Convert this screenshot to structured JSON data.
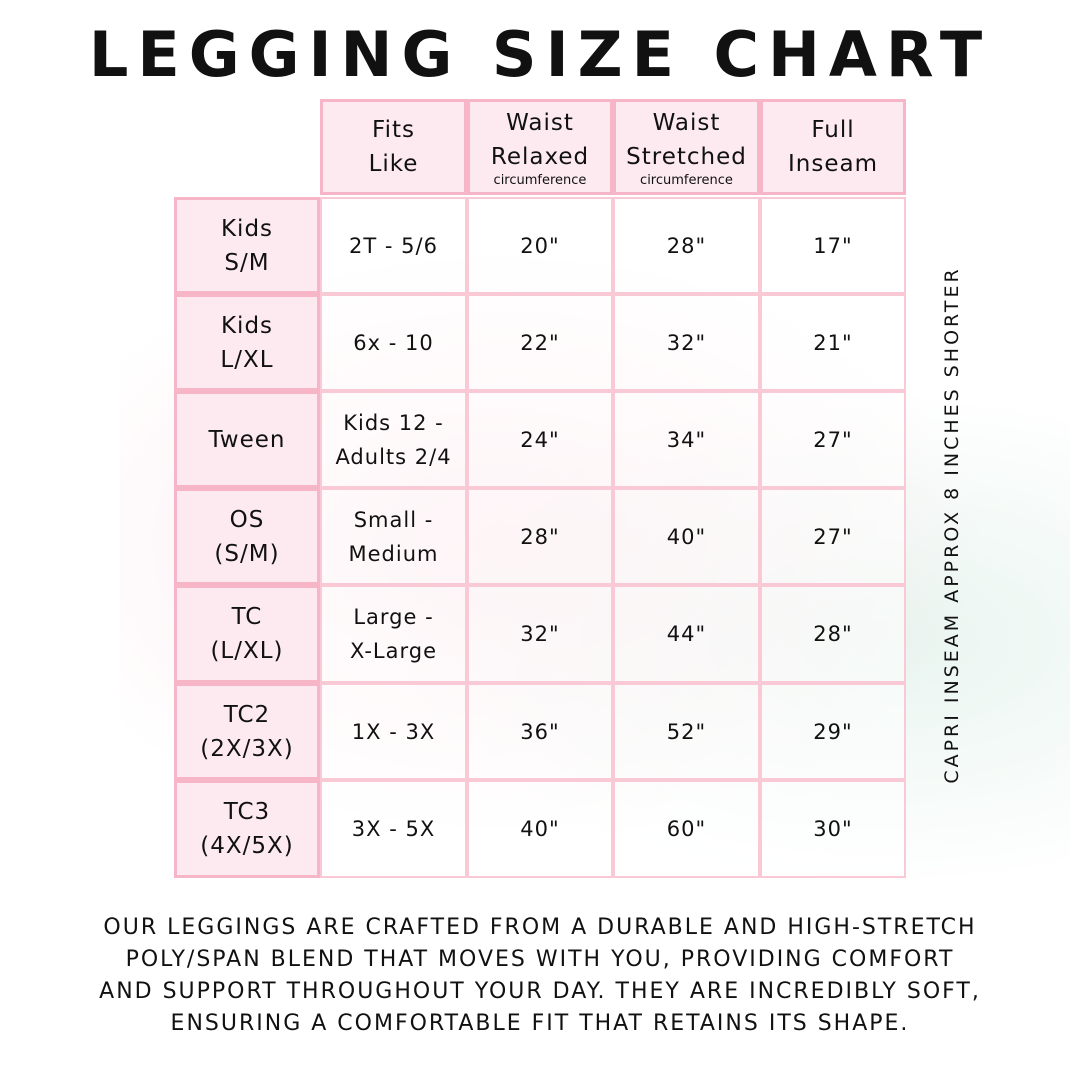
{
  "title": "LEGGING SIZE CHART",
  "columns": [
    {
      "line1": "Fits",
      "line2": "Like",
      "sub": ""
    },
    {
      "line1": "Waist",
      "line2": "Relaxed",
      "sub": "circumference"
    },
    {
      "line1": "Waist",
      "line2": "Stretched",
      "sub": "circumference"
    },
    {
      "line1": "Full",
      "line2": "Inseam",
      "sub": ""
    }
  ],
  "rows": [
    {
      "size1": "Kids",
      "size2": "S/M",
      "fits1": "2T - 5/6",
      "fits2": "",
      "relaxed": "20\"",
      "stretched": "28\"",
      "inseam": "17\""
    },
    {
      "size1": "Kids",
      "size2": "L/XL",
      "fits1": "6x - 10",
      "fits2": "",
      "relaxed": "22\"",
      "stretched": "32\"",
      "inseam": "21\""
    },
    {
      "size1": "Tween",
      "size2": "",
      "fits1": "Kids 12 -",
      "fits2": "Adults 2/4",
      "relaxed": "24\"",
      "stretched": "34\"",
      "inseam": "27\""
    },
    {
      "size1": "OS",
      "size2": "(S/M)",
      "fits1": "Small -",
      "fits2": "Medium",
      "relaxed": "28\"",
      "stretched": "40\"",
      "inseam": "27\""
    },
    {
      "size1": "TC",
      "size2": "(L/XL)",
      "fits1": "Large -",
      "fits2": "X-Large",
      "relaxed": "32\"",
      "stretched": "44\"",
      "inseam": "28\""
    },
    {
      "size1": "TC2",
      "size2": "(2X/3X)",
      "fits1": "1X - 3X",
      "fits2": "",
      "relaxed": "36\"",
      "stretched": "52\"",
      "inseam": "29\""
    },
    {
      "size1": "TC3",
      "size2": "(4X/5X)",
      "fits1": "3X - 5X",
      "fits2": "",
      "relaxed": "40\"",
      "stretched": "60\"",
      "inseam": "30\""
    }
  ],
  "side_note": "CAPRI INSEAM APPROX 8 INCHES SHORTER",
  "footer": [
    "Our leggings are crafted from a durable and high-stretch",
    "poly/span blend that moves with you, providing comfort",
    "and support throughout your day. They are incredibly soft,",
    "ensuring a comfortable fit that retains its shape."
  ],
  "colors": {
    "border": "#f7b5c8",
    "header_bg": "#fdeaf0"
  }
}
